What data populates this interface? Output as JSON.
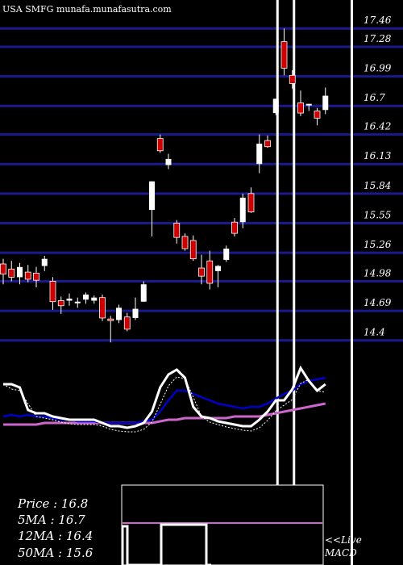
{
  "source_label": "USA SMFG munafa.munafasutra.com",
  "info": {
    "price": "Price  : 16.8",
    "ma5": "5MA : 16.7",
    "ma12": "12MA : 16.4",
    "ma50": "50MA : 15.6"
  },
  "macd_label_line1": "<<Live",
  "macd_label_line2": "MACD",
  "colors": {
    "background": "#000000",
    "grid": "#1a1a8c",
    "up": "#ffffff",
    "down": "#cc0000",
    "ma_fast": "#ffffff",
    "ma_mid": "#0000cc",
    "ma_slow": "#cc66cc"
  },
  "chart_data": {
    "type": "candlestick",
    "y_ticks": [
      17.46,
      17.28,
      16.99,
      16.7,
      16.42,
      16.13,
      15.84,
      15.55,
      15.26,
      14.98,
      14.69,
      14.4
    ],
    "ylim": [
      14.2,
      17.62
    ],
    "candles": [
      {
        "o": 15.15,
        "h": 15.2,
        "l": 14.95,
        "c": 15.05
      },
      {
        "o": 15.1,
        "h": 15.18,
        "l": 14.98,
        "c": 15.02
      },
      {
        "o": 15.02,
        "h": 15.16,
        "l": 14.95,
        "c": 15.12
      },
      {
        "o": 15.07,
        "h": 15.14,
        "l": 14.97,
        "c": 15.0
      },
      {
        "o": 15.06,
        "h": 15.12,
        "l": 14.92,
        "c": 14.99
      },
      {
        "o": 15.13,
        "h": 15.23,
        "l": 15.08,
        "c": 15.2
      },
      {
        "o": 14.98,
        "h": 15.02,
        "l": 14.7,
        "c": 14.78
      },
      {
        "o": 14.79,
        "h": 14.83,
        "l": 14.66,
        "c": 14.74
      },
      {
        "o": 14.79,
        "h": 14.86,
        "l": 14.74,
        "c": 14.81
      },
      {
        "o": 14.78,
        "h": 14.82,
        "l": 14.72,
        "c": 14.78
      },
      {
        "o": 14.8,
        "h": 14.87,
        "l": 14.76,
        "c": 14.85
      },
      {
        "o": 14.79,
        "h": 14.84,
        "l": 14.76,
        "c": 14.82
      },
      {
        "o": 14.82,
        "h": 14.85,
        "l": 14.59,
        "c": 14.62
      },
      {
        "o": 14.61,
        "h": 14.64,
        "l": 14.38,
        "c": 14.6
      },
      {
        "o": 14.6,
        "h": 14.75,
        "l": 14.57,
        "c": 14.72
      },
      {
        "o": 14.63,
        "h": 14.67,
        "l": 14.49,
        "c": 14.51
      },
      {
        "o": 14.62,
        "h": 14.82,
        "l": 14.6,
        "c": 14.71
      },
      {
        "o": 14.78,
        "h": 14.98,
        "l": 14.78,
        "c": 14.95
      },
      {
        "o": 15.68,
        "h": 15.96,
        "l": 15.42,
        "c": 15.96
      },
      {
        "o": 16.38,
        "h": 16.42,
        "l": 16.24,
        "c": 16.26
      },
      {
        "o": 16.12,
        "h": 16.23,
        "l": 16.08,
        "c": 16.18
      },
      {
        "o": 15.55,
        "h": 15.58,
        "l": 15.35,
        "c": 15.41
      },
      {
        "o": 15.42,
        "h": 15.45,
        "l": 15.28,
        "c": 15.3
      },
      {
        "o": 15.38,
        "h": 15.43,
        "l": 15.18,
        "c": 15.2
      },
      {
        "o": 15.11,
        "h": 15.24,
        "l": 14.95,
        "c": 15.03
      },
      {
        "o": 15.18,
        "h": 15.28,
        "l": 14.9,
        "c": 14.96
      },
      {
        "o": 15.08,
        "h": 15.14,
        "l": 14.92,
        "c": 15.13
      },
      {
        "o": 15.19,
        "h": 15.33,
        "l": 15.17,
        "c": 15.3
      },
      {
        "o": 15.56,
        "h": 15.6,
        "l": 15.42,
        "c": 15.45
      },
      {
        "o": 15.56,
        "h": 15.84,
        "l": 15.5,
        "c": 15.8
      },
      {
        "o": 15.84,
        "h": 15.9,
        "l": 15.65,
        "c": 15.66
      },
      {
        "o": 16.13,
        "h": 16.42,
        "l": 16.04,
        "c": 16.33
      },
      {
        "o": 16.36,
        "h": 16.41,
        "l": 16.29,
        "c": 16.3
      },
      {
        "o": 16.63,
        "h": 16.77,
        "l": 16.61,
        "c": 16.77
      },
      {
        "o": 17.33,
        "h": 17.46,
        "l": 17.0,
        "c": 17.07
      },
      {
        "o": 17.0,
        "h": 17.05,
        "l": 16.87,
        "c": 16.92
      },
      {
        "o": 16.73,
        "h": 16.85,
        "l": 16.6,
        "c": 16.63
      },
      {
        "o": 16.72,
        "h": 16.72,
        "l": 16.65,
        "c": 16.72
      },
      {
        "o": 16.65,
        "h": 16.68,
        "l": 16.51,
        "c": 16.58
      },
      {
        "o": 16.66,
        "h": 16.88,
        "l": 16.62,
        "c": 16.8
      }
    ],
    "vertical_markers": [
      33,
      35,
      42
    ],
    "indicator": {
      "ma_fast": [
        0.82,
        0.82,
        0.8,
        0.66,
        0.64,
        0.64,
        0.62,
        0.61,
        0.6,
        0.6,
        0.6,
        0.6,
        0.58,
        0.56,
        0.56,
        0.55,
        0.56,
        0.58,
        0.65,
        0.8,
        0.88,
        0.91,
        0.86,
        0.68,
        0.62,
        0.61,
        0.59,
        0.58,
        0.57,
        0.56,
        0.56,
        0.6,
        0.65,
        0.72,
        0.72,
        0.79,
        0.92,
        0.84,
        0.78,
        0.82
      ],
      "ma_mid": [
        0.62,
        0.63,
        0.62,
        0.63,
        0.62,
        0.62,
        0.61,
        0.6,
        0.6,
        0.59,
        0.59,
        0.59,
        0.58,
        0.58,
        0.58,
        0.58,
        0.58,
        0.59,
        0.6,
        0.65,
        0.72,
        0.78,
        0.78,
        0.76,
        0.74,
        0.72,
        0.7,
        0.69,
        0.68,
        0.67,
        0.68,
        0.68,
        0.7,
        0.73,
        0.76,
        0.78,
        0.82,
        0.84,
        0.85,
        0.86
      ],
      "ma_slow": [
        0.57,
        0.57,
        0.57,
        0.57,
        0.57,
        0.58,
        0.58,
        0.58,
        0.58,
        0.58,
        0.58,
        0.58,
        0.58,
        0.58,
        0.58,
        0.58,
        0.58,
        0.58,
        0.58,
        0.59,
        0.6,
        0.6,
        0.61,
        0.61,
        0.61,
        0.61,
        0.61,
        0.61,
        0.62,
        0.62,
        0.62,
        0.62,
        0.63,
        0.64,
        0.65,
        0.66,
        0.67,
        0.68,
        0.69,
        0.7
      ]
    }
  }
}
